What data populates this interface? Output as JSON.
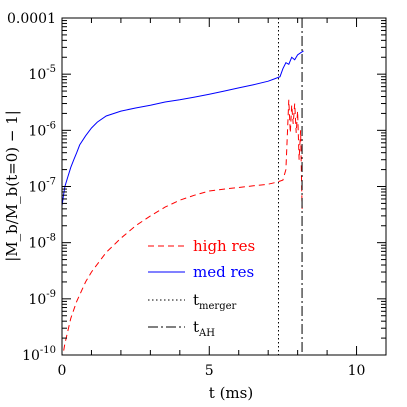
{
  "chart_data": {
    "type": "line",
    "title": "",
    "xlabel": "t (ms)",
    "ylabel": "|M_b/M_b(t=0) − 1|",
    "xlim": [
      0,
      11
    ],
    "ylim_log10": [
      -10,
      -4
    ],
    "yscale": "log",
    "x_ticks": [
      "0",
      "5",
      "10"
    ],
    "y_ticks": [
      {
        "base": "0.0001",
        "exp": ""
      },
      {
        "base": "10",
        "exp": "-5"
      },
      {
        "base": "10",
        "exp": "-6"
      },
      {
        "base": "10",
        "exp": "-7"
      },
      {
        "base": "10",
        "exp": "-8"
      },
      {
        "base": "10",
        "exp": "-9"
      },
      {
        "base": "10",
        "exp": "-10"
      }
    ],
    "series": [
      {
        "name": "high res",
        "color": "#ff0000",
        "style": "dashed",
        "x": [
          0.0,
          0.1,
          0.3,
          0.5,
          0.8,
          1.0,
          1.5,
          2.0,
          2.5,
          3.0,
          3.5,
          4.0,
          4.5,
          5.0,
          5.5,
          6.0,
          6.5,
          7.0,
          7.3,
          7.5,
          7.6,
          7.7,
          7.75,
          7.8,
          7.85,
          7.9,
          7.95,
          8.0,
          8.05,
          8.1,
          8.15
        ],
        "y": [
          8e-11,
          1.6e-10,
          4.5e-10,
          9e-10,
          2e-09,
          3e-09,
          6.7e-09,
          1.2e-08,
          2e-08,
          3e-08,
          4.3e-08,
          5.7e-08,
          7e-08,
          8.3e-08,
          9e-08,
          9.6e-08,
          1.03e-07,
          1.1e-07,
          1.2e-07,
          1.3e-07,
          2e-07,
          3.5e-06,
          9e-07,
          2.8e-06,
          1.3e-06,
          3e-06,
          9e-07,
          2.2e-06,
          3e-07,
          1e-06,
          4e-08
        ]
      },
      {
        "name": "med res",
        "color": "#0000ff",
        "style": "solid",
        "x": [
          0.0,
          0.05,
          0.1,
          0.2,
          0.3,
          0.4,
          0.5,
          0.6,
          0.8,
          1.0,
          1.2,
          1.5,
          2.0,
          2.5,
          3.0,
          3.5,
          4.0,
          4.5,
          5.0,
          5.5,
          6.0,
          6.5,
          7.0,
          7.2,
          7.4,
          7.5,
          7.6,
          7.7,
          7.8,
          7.9,
          8.0,
          8.1,
          8.2
        ],
        "y": [
          4.5e-08,
          7e-08,
          1e-07,
          1.5e-07,
          2.2e-07,
          3e-07,
          4e-07,
          5.5e-07,
          8e-07,
          1.1e-06,
          1.4e-06,
          1.8e-06,
          2.2e-06,
          2.5e-06,
          2.8e-06,
          3.2e-06,
          3.5e-06,
          3.9e-06,
          4.4e-06,
          5e-06,
          5.7e-06,
          6.5e-06,
          7.5e-06,
          8.2e-06,
          9e-06,
          1.25e-05,
          1.6e-05,
          1.5e-05,
          2e-05,
          1.8e-05,
          2.2e-05,
          2.4e-05,
          2.6e-05
        ]
      }
    ],
    "vlines": [
      {
        "name": "t_merger",
        "label_base": "t",
        "label_sub": "merger",
        "x": 7.35,
        "style": "dotted"
      },
      {
        "name": "t_AH",
        "label_base": "t",
        "label_sub": "AH",
        "x": 8.15,
        "style": "dashdot"
      }
    ],
    "legend": [
      {
        "label": "high res",
        "color": "#ff0000",
        "style": "dashed"
      },
      {
        "label": "med res",
        "color": "#0000ff",
        "style": "solid"
      },
      {
        "label_base": "t",
        "label_sub": "merger",
        "color": "#000000",
        "style": "dotted"
      },
      {
        "label_base": "t",
        "label_sub": "AH",
        "color": "#000000",
        "style": "dashdot"
      }
    ],
    "legend_position": "lower-center",
    "grid": false
  }
}
